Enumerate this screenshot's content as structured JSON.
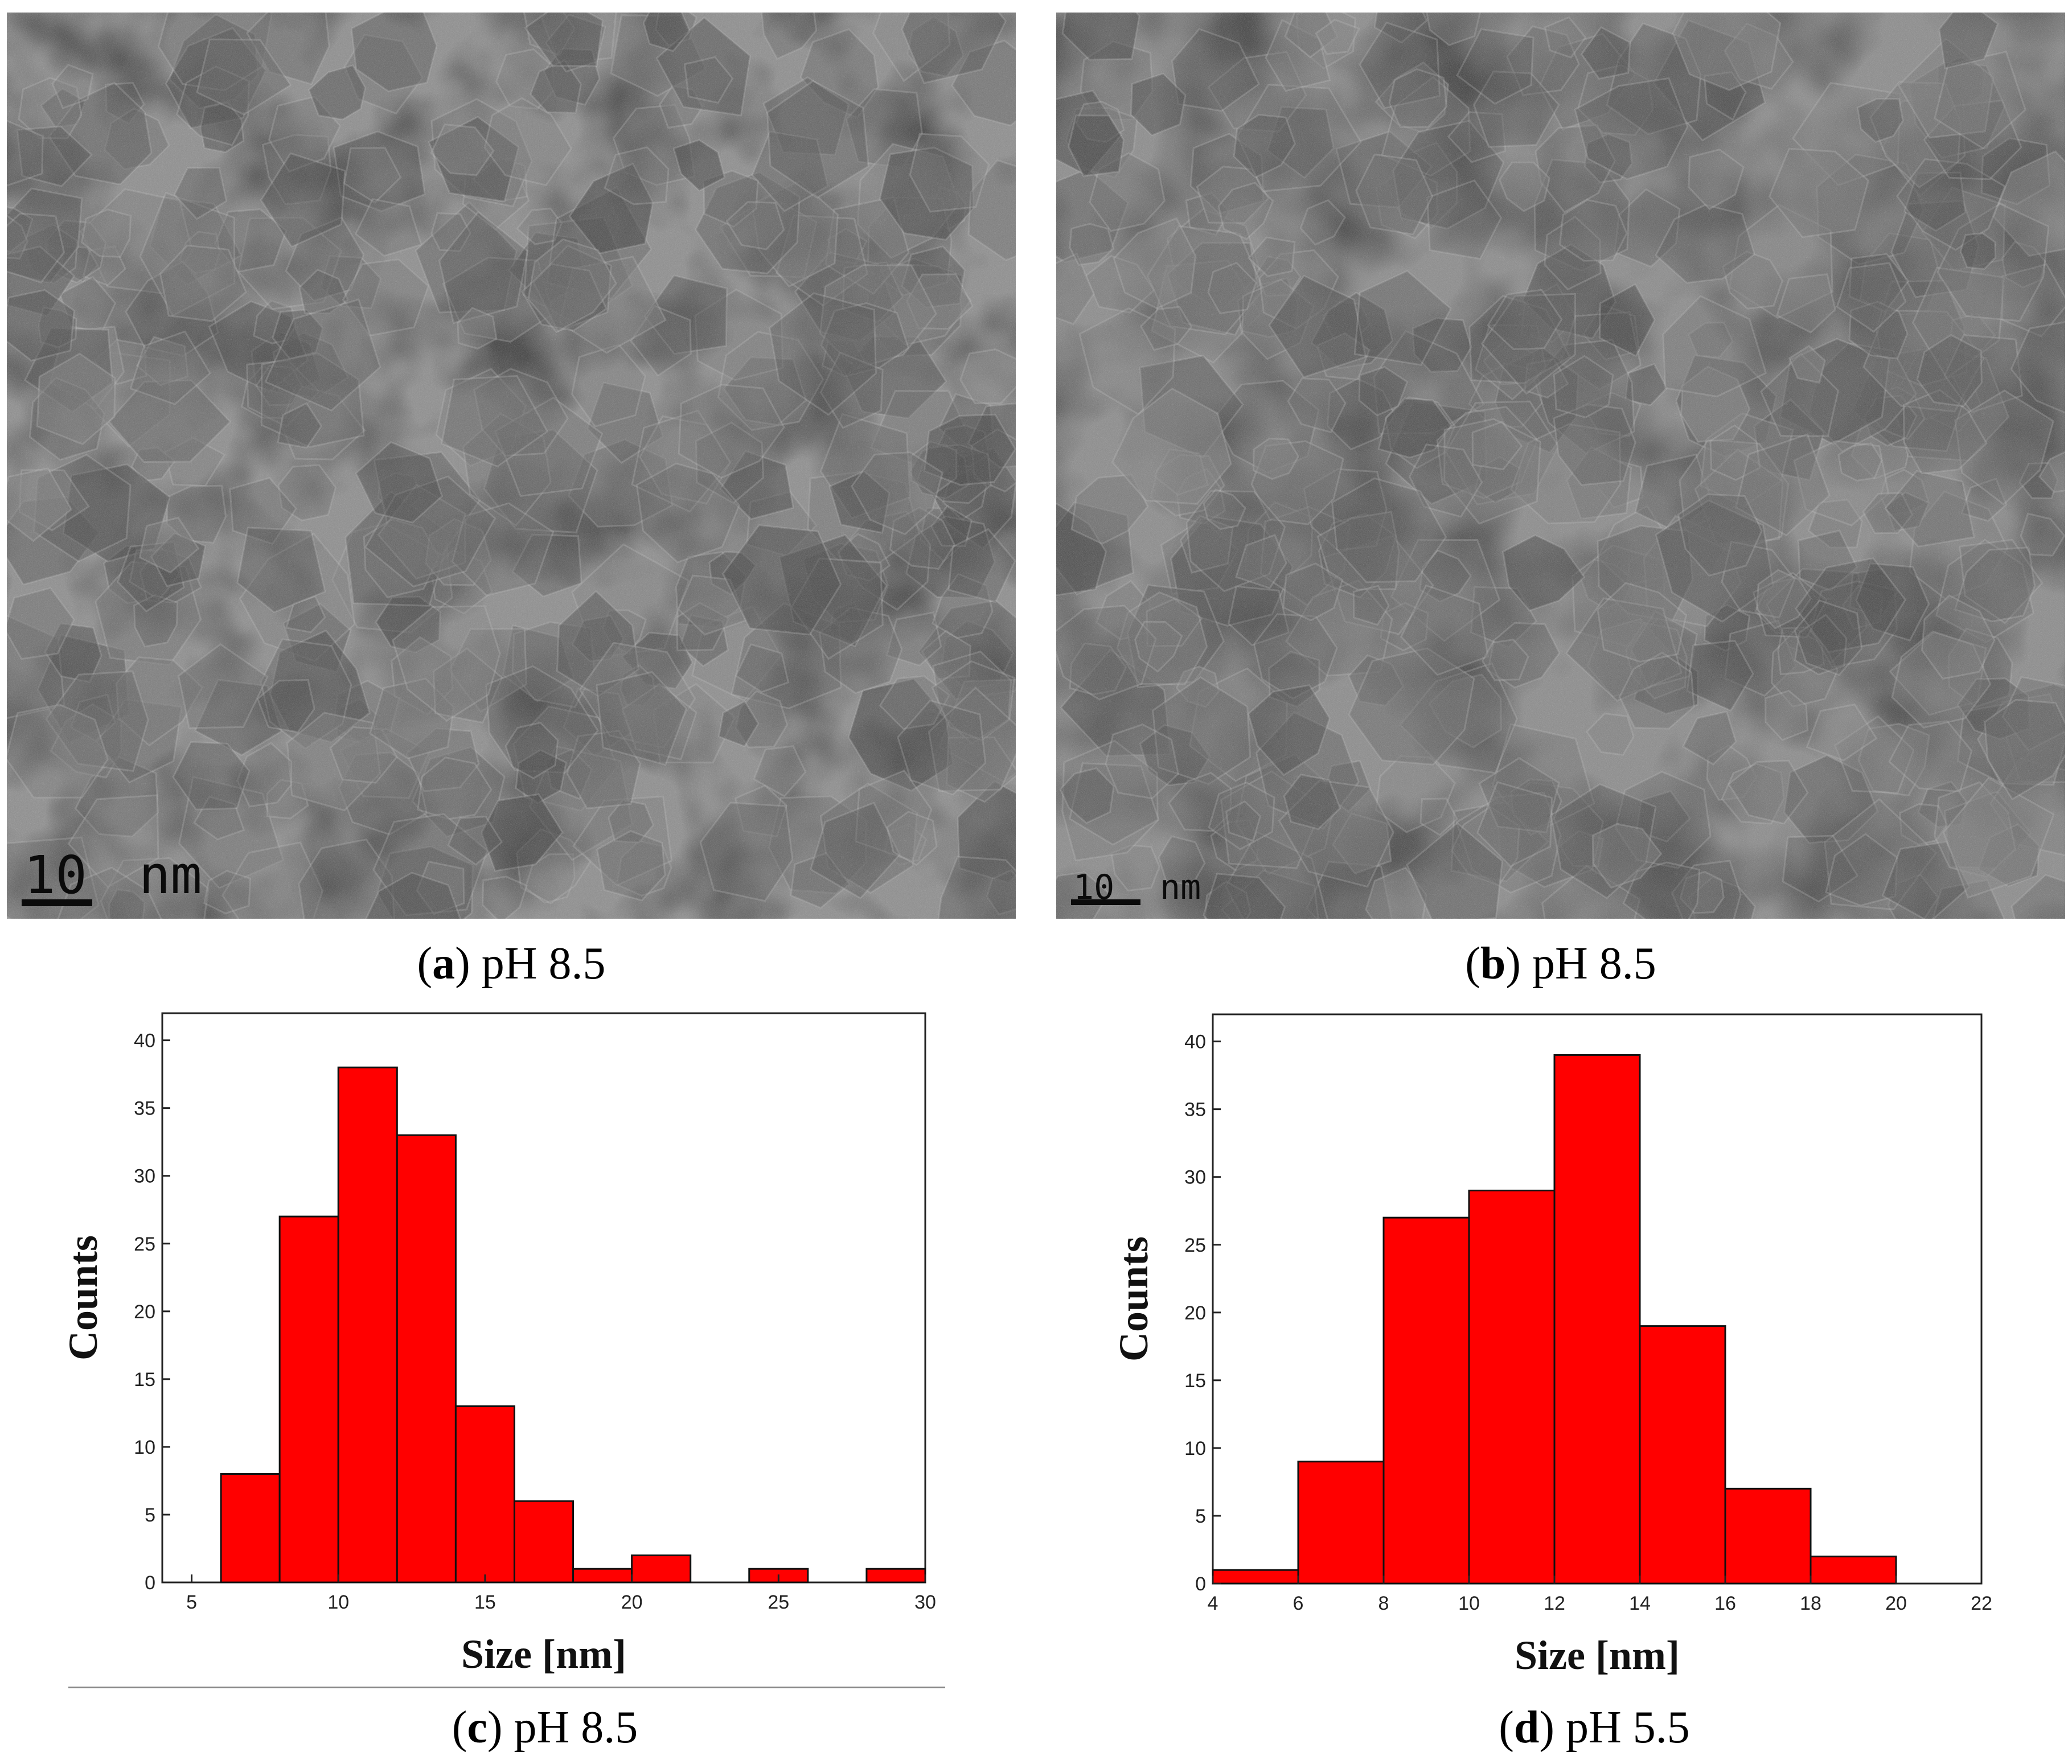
{
  "panels": [
    {
      "id": "a",
      "letter": "a",
      "caption": "pH 8.5",
      "scale_value": "10",
      "scale_unit": "nm"
    },
    {
      "id": "b",
      "letter": "b",
      "caption": "pH 8.5",
      "scale_value": "10",
      "scale_unit": "nm"
    },
    {
      "id": "c",
      "letter": "c",
      "caption": "pH 8.5"
    },
    {
      "id": "d",
      "letter": "d",
      "caption": "pH 5.5"
    }
  ],
  "chart_data": [
    {
      "panel": "c",
      "type": "bar",
      "title": "",
      "xlabel": "Size [nm]",
      "ylabel": "Counts",
      "xlim": [
        4,
        30
      ],
      "ylim": [
        0,
        42
      ],
      "xticks": [
        5,
        10,
        15,
        20,
        25,
        30
      ],
      "yticks": [
        0,
        5,
        10,
        15,
        20,
        25,
        30,
        35,
        40
      ],
      "bin_width": 2,
      "bin_starts": [
        6,
        8,
        10,
        12,
        14,
        16,
        18,
        20,
        22,
        24,
        26,
        28
      ],
      "values": [
        8,
        27,
        38,
        33,
        13,
        6,
        1,
        2,
        0,
        1,
        0,
        1
      ],
      "bar_color": "#ff0000",
      "grid": false
    },
    {
      "panel": "d",
      "type": "bar",
      "title": "",
      "xlabel": "Size [nm]",
      "ylabel": "Counts",
      "xlim": [
        4,
        22
      ],
      "ylim": [
        0,
        42
      ],
      "xticks": [
        4,
        6,
        8,
        10,
        12,
        14,
        16,
        18,
        20,
        22
      ],
      "yticks": [
        0,
        5,
        10,
        15,
        20,
        25,
        30,
        35,
        40
      ],
      "bin_width": 2,
      "bin_starts": [
        4,
        6,
        8,
        10,
        12,
        14,
        16,
        18
      ],
      "values": [
        1,
        9,
        27,
        29,
        39,
        19,
        7,
        2
      ],
      "bar_color": "#ff0000",
      "grid": false
    }
  ]
}
